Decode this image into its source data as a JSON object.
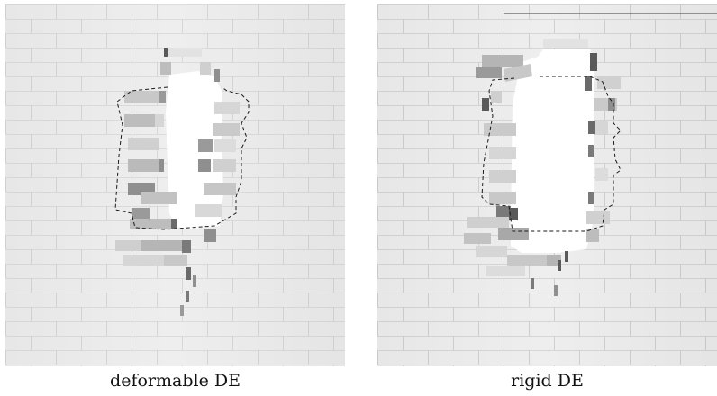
{
  "captions": {
    "left": "deformable DE",
    "right": "rigid DE"
  },
  "colors": {
    "wall": "#eeeeee",
    "mortar": "#d9d9d9",
    "opening": "#ffffff",
    "brick_mid": "#c4c4c4",
    "brick_dark": "#8f8f8f",
    "brick_darker": "#5a5a5a",
    "outline": "#1a1a1a",
    "text": "#111111"
  }
}
